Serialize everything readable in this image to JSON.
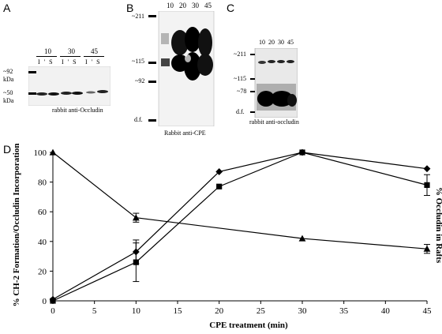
{
  "panels": {
    "a": {
      "letter": "A",
      "lane_groups": [
        "10",
        "30",
        "45"
      ],
      "lane_pairs": [
        "I ' S",
        "I ' S",
        "I ' S"
      ],
      "markers": [
        "~92",
        "kDa",
        "~50",
        "kDa"
      ],
      "caption": "rabbit anti-Occludin"
    },
    "b": {
      "letter": "B",
      "lanes": [
        "10",
        "20",
        "30",
        "45"
      ],
      "markers": [
        "~211",
        "~115",
        "~92",
        "d.f."
      ],
      "caption": "Rabbit anti-CPE"
    },
    "c": {
      "letter": "C",
      "lanes": [
        "10",
        "20",
        "30",
        "45"
      ],
      "markers": [
        "~211",
        "~115",
        "~78",
        "d.f."
      ],
      "caption": "rabbit anti-occludin"
    },
    "d": {
      "letter": "D"
    }
  },
  "chart_data": {
    "type": "line",
    "xlabel": "CPE treatment (min)",
    "ylabel": "% CH-2 Formation/Occludin Incorporation",
    "y2label": "% Occludin in Rafts",
    "xlim": [
      0,
      45
    ],
    "ylim": [
      0,
      100
    ],
    "x_ticks": [
      0,
      5,
      10,
      15,
      20,
      25,
      30,
      35,
      40,
      45
    ],
    "y_ticks": [
      0,
      20,
      40,
      60,
      80,
      100
    ],
    "series": [
      {
        "marker": "diamond",
        "x": [
          0,
          10,
          20,
          30,
          45
        ],
        "y": [
          1,
          33,
          87,
          100,
          89
        ],
        "err": [
          0,
          8,
          0,
          0,
          0
        ]
      },
      {
        "marker": "square",
        "x": [
          0,
          10,
          20,
          30,
          45
        ],
        "y": [
          0,
          26,
          77,
          100,
          78
        ],
        "err": [
          0,
          13,
          0,
          0,
          7
        ]
      },
      {
        "marker": "triangle",
        "x": [
          0,
          10,
          30,
          45
        ],
        "y": [
          100,
          56,
          42,
          35
        ],
        "err": [
          0,
          3,
          0,
          3
        ]
      }
    ]
  }
}
